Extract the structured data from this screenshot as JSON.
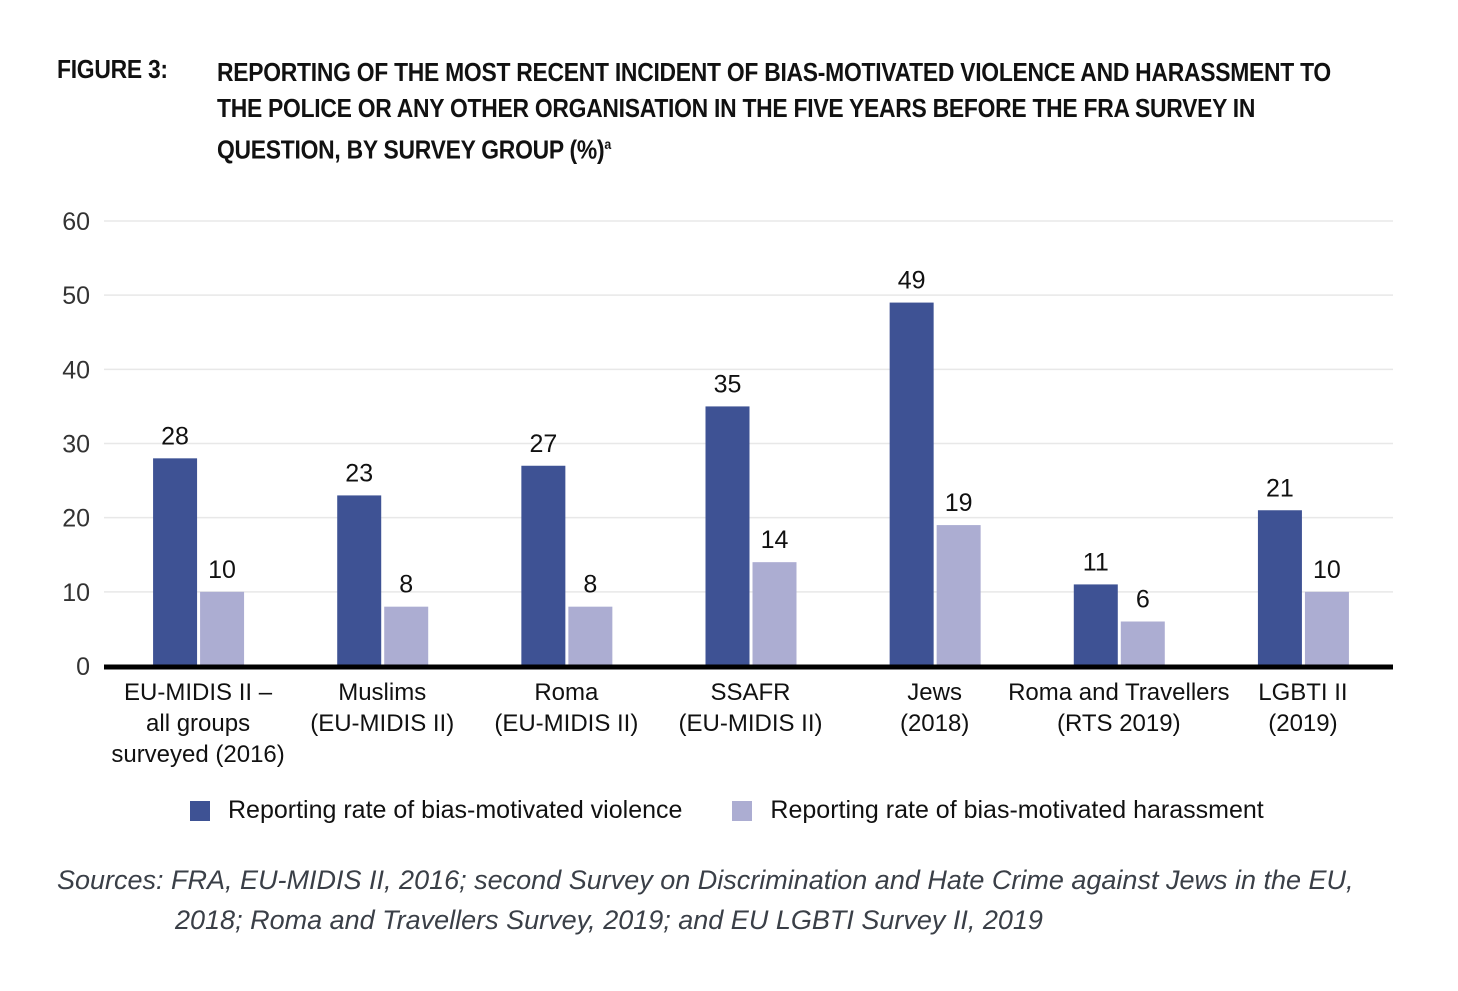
{
  "figure": {
    "label": "FIGURE 3:",
    "title": "REPORTING OF THE MOST RECENT INCIDENT OF BIAS-MOTIVATED VIOLENCE AND HARASSMENT TO THE POLICE OR ANY OTHER ORGANISATION IN THE FIVE YEARS BEFORE THE FRA SURVEY IN QUESTION, BY SURVEY GROUP (%)",
    "title_footnote_mark": "a"
  },
  "sources": {
    "line1": "Sources: FRA, EU-MIDIS II, 2016; second Survey on Discrimination and Hate Crime against Jews in the EU,",
    "line2": "2018; Roma and Travellers Survey, 2019; and EU LGBTI Survey II, 2019"
  },
  "colors": {
    "violence": "#3e5294",
    "harassment": "#acadd2",
    "grid": "#e8e8e8",
    "axis": "#000000"
  },
  "chart_data": {
    "type": "bar",
    "title": "Reporting of the most recent incident of bias-motivated violence and harassment to the police or any other organisation in the five years before the FRA survey in question, by survey group (%)",
    "xlabel": "",
    "ylabel": "",
    "ylim": [
      0,
      60
    ],
    "yticks": [
      0,
      10,
      20,
      30,
      40,
      50,
      60
    ],
    "grid": true,
    "legend_position": "bottom",
    "categories": [
      [
        "EU-MIDIS II –",
        "all groups",
        "surveyed (2016)"
      ],
      [
        "Muslims",
        "(EU-MIDIS II)"
      ],
      [
        "Roma",
        "(EU-MIDIS II)"
      ],
      [
        "SSAFR",
        "(EU-MIDIS II)"
      ],
      [
        "Jews",
        "(2018)"
      ],
      [
        "Roma and Travellers",
        "(RTS 2019)"
      ],
      [
        "LGBTI II",
        "(2019)"
      ]
    ],
    "series": [
      {
        "name": "Reporting rate of bias-motivated violence",
        "values": [
          28,
          23,
          27,
          35,
          49,
          11,
          21
        ]
      },
      {
        "name": "Reporting rate of bias-motivated harassment",
        "values": [
          10,
          8,
          8,
          14,
          19,
          6,
          10
        ]
      }
    ]
  }
}
